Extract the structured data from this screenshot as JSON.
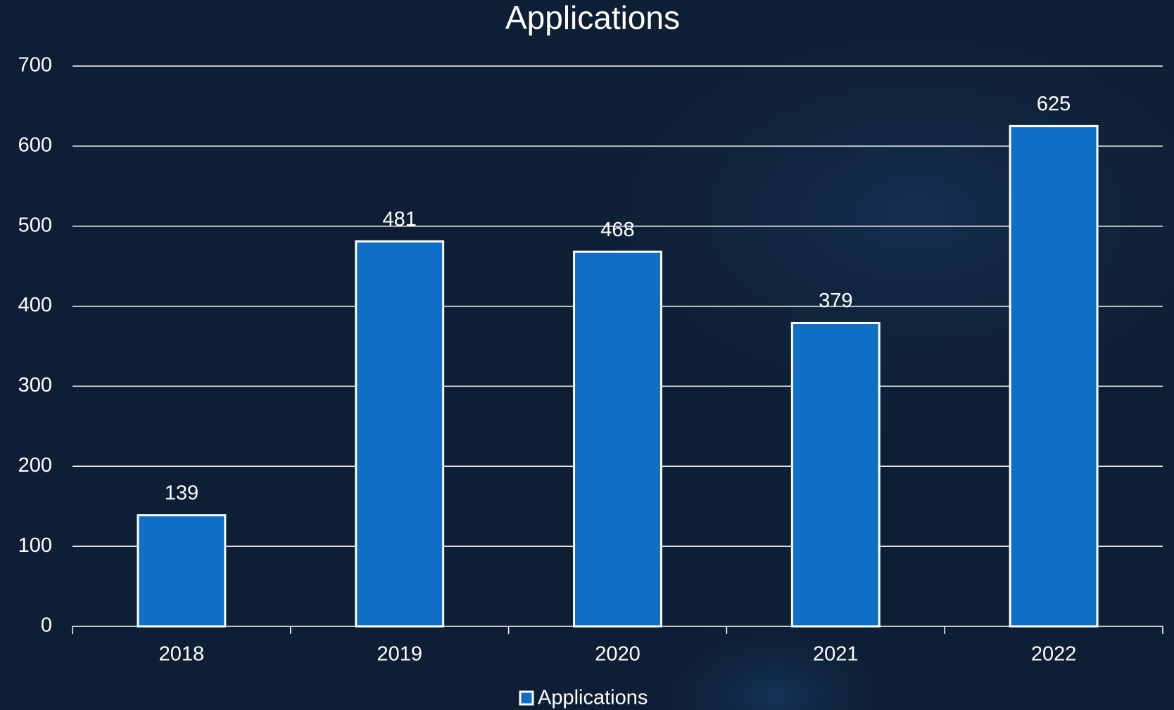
{
  "chart_data": {
    "type": "bar",
    "title": "Applications",
    "categories": [
      "2018",
      "2019",
      "2020",
      "2021",
      "2022"
    ],
    "series": [
      {
        "name": "Applications",
        "color": "#0f6fc6",
        "values": [
          139,
          481,
          468,
          379,
          625
        ]
      }
    ],
    "ylim": [
      0,
      700
    ],
    "yticks": [
      0,
      100,
      200,
      300,
      400,
      500,
      600,
      700
    ],
    "grid": true,
    "legend": "bottom"
  }
}
